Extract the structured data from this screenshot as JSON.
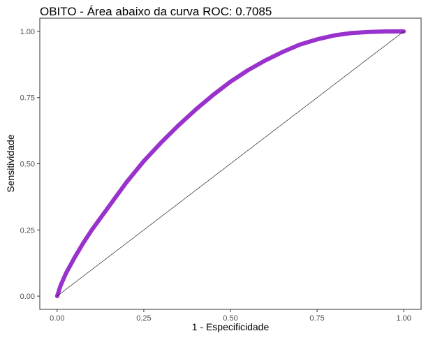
{
  "chart_data": {
    "type": "line",
    "title": "OBITO - Área abaixo da curva ROC: 0.7085",
    "xlabel": "1 - Especificidade",
    "ylabel": "Sensitividade",
    "xlim": [
      -0.05,
      1.05
    ],
    "ylim": [
      -0.05,
      1.05
    ],
    "x_ticks": [
      0.0,
      0.25,
      0.5,
      0.75,
      1.0
    ],
    "x_tick_labels": [
      "0.00",
      "0.25",
      "0.50",
      "0.75",
      "1.00"
    ],
    "y_ticks": [
      0.0,
      0.25,
      0.5,
      0.75,
      1.0
    ],
    "y_tick_labels": [
      "0.00",
      "0.25",
      "0.50",
      "0.75",
      "1.00"
    ],
    "grid": false,
    "series": [
      {
        "color": "#9932cc",
        "x": [
          0.0,
          0.01,
          0.025,
          0.05,
          0.075,
          0.1,
          0.15,
          0.2,
          0.25,
          0.3,
          0.35,
          0.4,
          0.45,
          0.5,
          0.55,
          0.6,
          0.65,
          0.7,
          0.75,
          0.8,
          0.85,
          0.9,
          0.95,
          1.0
        ],
        "y": [
          0.0,
          0.04,
          0.085,
          0.145,
          0.2,
          0.25,
          0.34,
          0.43,
          0.51,
          0.58,
          0.645,
          0.705,
          0.76,
          0.81,
          0.853,
          0.89,
          0.922,
          0.95,
          0.97,
          0.985,
          0.994,
          0.998,
          1.0,
          1.0
        ]
      },
      {
        "color": "#000000",
        "x": [
          0.0,
          1.0
        ],
        "y": [
          0.0,
          1.0
        ]
      }
    ]
  }
}
